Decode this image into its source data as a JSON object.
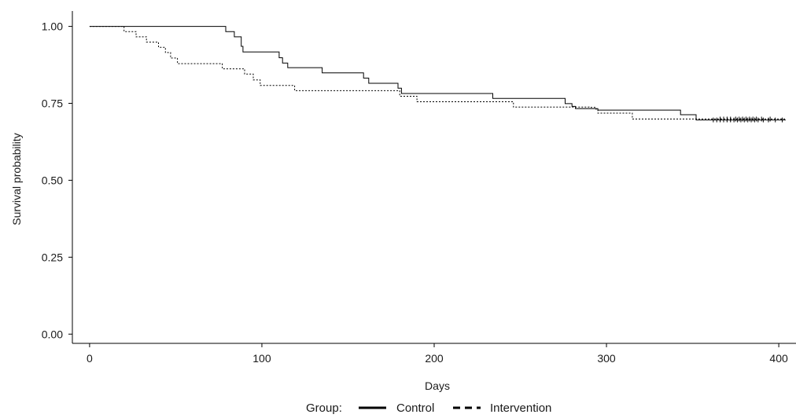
{
  "chart_data": {
    "type": "line",
    "subtype": "kaplan-meier-step",
    "title": "",
    "xlabel": "Days",
    "ylabel": "Survival probability",
    "xlim": [
      -10,
      410
    ],
    "ylim": [
      -0.03,
      1.05
    ],
    "x_ticks": [
      0,
      100,
      200,
      300,
      400
    ],
    "x_tick_labels": [
      "0",
      "100",
      "200",
      "300",
      "400"
    ],
    "y_ticks": [
      0.0,
      0.25,
      0.5,
      0.75,
      1.0
    ],
    "y_tick_labels": [
      "0.00",
      "0.25",
      "0.50",
      "0.75",
      "1.00"
    ],
    "grid": false,
    "legend": {
      "position": "bottom",
      "title": "Group:",
      "entries": [
        "Control",
        "Intervention"
      ]
    },
    "series": [
      {
        "name": "Control",
        "line_style": "solid",
        "steps": [
          [
            0,
            1.0
          ],
          [
            21,
            1.0
          ],
          [
            79,
            0.983
          ],
          [
            84,
            0.966
          ],
          [
            88,
            0.935
          ],
          [
            89,
            0.917
          ],
          [
            110,
            0.898
          ],
          [
            112,
            0.881
          ],
          [
            115,
            0.866
          ],
          [
            135,
            0.849
          ],
          [
            159,
            0.832
          ],
          [
            162,
            0.815
          ],
          [
            179,
            0.799
          ],
          [
            181,
            0.782
          ],
          [
            234,
            0.766
          ],
          [
            276,
            0.749
          ],
          [
            280,
            0.74
          ],
          [
            282,
            0.733
          ],
          [
            295,
            0.728
          ],
          [
            343,
            0.713
          ],
          [
            352,
            0.696
          ],
          [
            404,
            0.696
          ]
        ],
        "censored_x": [
          362,
          364,
          366,
          368,
          370,
          372,
          374,
          376,
          378,
          380,
          382,
          384,
          386,
          388,
          391,
          394,
          398,
          402
        ]
      },
      {
        "name": "Intervention",
        "line_style": "dashed",
        "steps": [
          [
            0,
            1.0
          ],
          [
            17,
            1.0
          ],
          [
            20,
            0.983
          ],
          [
            27,
            0.966
          ],
          [
            33,
            0.949
          ],
          [
            40,
            0.932
          ],
          [
            44,
            0.915
          ],
          [
            47,
            0.897
          ],
          [
            51,
            0.879
          ],
          [
            64,
            0.879
          ],
          [
            77,
            0.862
          ],
          [
            90,
            0.845
          ],
          [
            95,
            0.826
          ],
          [
            99,
            0.808
          ],
          [
            119,
            0.791
          ],
          [
            179,
            0.791
          ],
          [
            180,
            0.773
          ],
          [
            190,
            0.755
          ],
          [
            246,
            0.738
          ],
          [
            290,
            0.737
          ],
          [
            294,
            0.729
          ],
          [
            295,
            0.718
          ],
          [
            315,
            0.699
          ],
          [
            404,
            0.696
          ]
        ],
        "censored_x": [
          366,
          368,
          370,
          372,
          375,
          377,
          379,
          381,
          383,
          385,
          387,
          390,
          395
        ]
      }
    ]
  }
}
